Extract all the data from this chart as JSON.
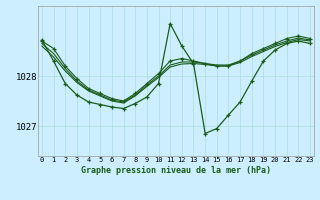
{
  "title": "Graphe pression niveau de la mer (hPa)",
  "background_color": "#cceeff",
  "grid_color": "#aadddd",
  "line_color": "#1a5c1a",
  "ylim": [
    1026.4,
    1029.4
  ],
  "yticks": [
    1027,
    1028
  ],
  "x_labels": [
    "0",
    "1",
    "2",
    "3",
    "4",
    "5",
    "6",
    "7",
    "8",
    "9",
    "10",
    "11",
    "12",
    "13",
    "14",
    "15",
    "16",
    "17",
    "18",
    "19",
    "20",
    "21",
    "22",
    "23"
  ],
  "series": [
    {
      "y": [
        1028.7,
        1028.55,
        1028.2,
        1027.95,
        1027.75,
        1027.65,
        1027.55,
        1027.5,
        1027.65,
        1027.85,
        1028.05,
        1028.3,
        1028.35,
        1028.3,
        1028.25,
        1028.2,
        1028.2,
        1028.3,
        1028.45,
        1028.55,
        1028.65,
        1028.75,
        1028.8,
        1028.75
      ],
      "lw": 0.8,
      "marker": true
    },
    {
      "y": [
        1028.65,
        1028.45,
        1028.15,
        1027.9,
        1027.72,
        1027.62,
        1027.52,
        1027.48,
        1027.62,
        1027.82,
        1028.0,
        1028.22,
        1028.28,
        1028.28,
        1028.25,
        1028.22,
        1028.22,
        1028.3,
        1028.42,
        1028.52,
        1028.62,
        1028.7,
        1028.76,
        1028.72
      ],
      "lw": 0.8,
      "marker": false
    },
    {
      "y": [
        1028.6,
        1028.38,
        1028.1,
        1027.87,
        1027.7,
        1027.6,
        1027.5,
        1027.46,
        1027.6,
        1027.79,
        1027.97,
        1028.18,
        1028.24,
        1028.25,
        1028.23,
        1028.2,
        1028.2,
        1028.27,
        1028.39,
        1028.49,
        1028.59,
        1028.67,
        1028.73,
        1028.7
      ],
      "lw": 0.8,
      "marker": false
    },
    {
      "y": [
        1028.72,
        1028.3,
        1027.85,
        1027.62,
        1027.48,
        1027.43,
        1027.38,
        1027.35,
        1027.45,
        1027.58,
        1027.85,
        1029.05,
        1028.6,
        1028.25,
        1026.85,
        1026.95,
        1027.22,
        1027.48,
        1027.9,
        1028.3,
        1028.52,
        1028.65,
        1028.7,
        1028.65
      ],
      "lw": 0.9,
      "marker": true
    }
  ]
}
